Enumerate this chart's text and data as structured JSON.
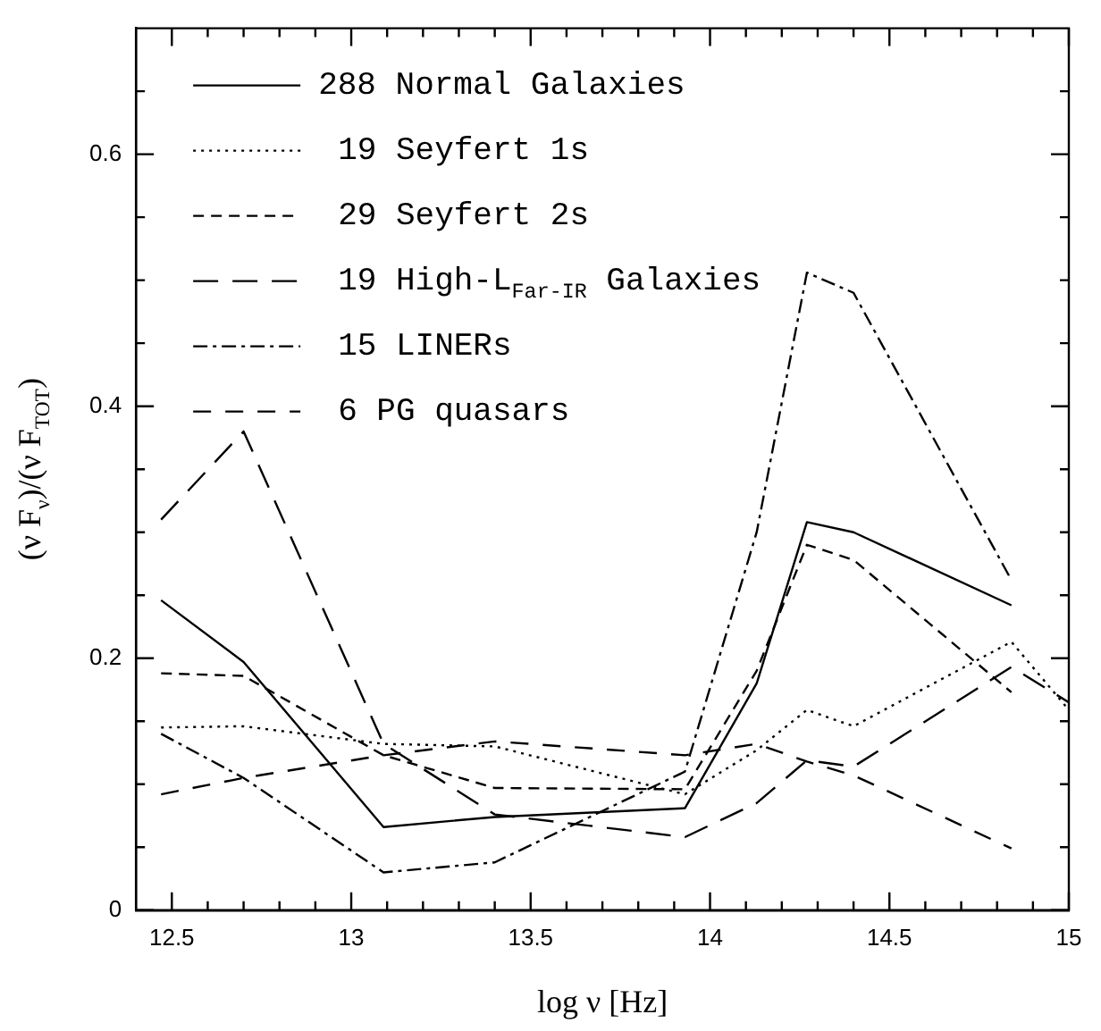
{
  "chart_data": {
    "type": "line",
    "xlabel": "log ν [Hz]",
    "ylabel": "(ν F$_{ν}$)/(ν F$_{TOT}$)",
    "x": [
      12.47,
      12.7,
      13.09,
      13.4,
      13.93,
      14.13,
      14.27,
      14.4,
      14.84,
      15
    ],
    "series": [
      {
        "name": "288 Normal Galaxies",
        "color": "#000000",
        "line_style": "solid",
        "values": [
          0.246,
          0.197,
          0.066,
          0.074,
          0.081,
          0.18,
          0.308,
          0.3,
          0.242,
          null
        ]
      },
      {
        "name": "19 Seyfert 1s",
        "color": "#000000",
        "line_style": "dotted",
        "values": [
          0.145,
          0.146,
          0.132,
          0.13,
          0.092,
          0.127,
          0.159,
          0.146,
          0.213,
          0.159
        ]
      },
      {
        "name": "29 Seyfert 2s",
        "color": "#000000",
        "line_style": "dashed",
        "values": [
          0.188,
          0.186,
          0.123,
          0.097,
          0.096,
          0.19,
          0.29,
          0.278,
          0.173,
          null
        ]
      },
      {
        "name": "19 High-L$_{Far-IR}$ Galaxies",
        "color": "#000000",
        "line_style": "dashed",
        "values": [
          0.31,
          0.38,
          0.132,
          0.076,
          0.058,
          0.085,
          0.119,
          0.114,
          0.193,
          0.165
        ]
      },
      {
        "name": "15 LINERs",
        "color": "#000000",
        "line_style": "dashed",
        "values": [
          0.14,
          0.105,
          0.03,
          0.038,
          0.11,
          0.3,
          0.506,
          0.49,
          0.262,
          null
        ]
      },
      {
        "name": "6 PG quasars",
        "color": "#000000",
        "line_style": "dashed",
        "values": [
          0.092,
          0.105,
          0.123,
          0.134,
          0.123,
          0.132,
          0.118,
          0.107,
          0.049,
          null
        ]
      }
    ],
    "xlim": [
      12.4,
      15
    ],
    "xticks": [
      12.5,
      {
        "value": 12.6,
        "label": null
      },
      {
        "value": 12.7,
        "label": null
      },
      {
        "value": 12.8,
        "label": null
      },
      {
        "value": 12.9,
        "label": null
      },
      13,
      {
        "value": 13.1,
        "label": null
      },
      {
        "value": 13.2,
        "label": null
      },
      {
        "value": 13.3,
        "label": null
      },
      {
        "value": 13.4,
        "label": null
      },
      13.5,
      {
        "value": 13.6,
        "label": null
      },
      {
        "value": 13.7,
        "label": null
      },
      {
        "value": 13.8,
        "label": null
      },
      {
        "value": 13.9,
        "label": null
      },
      14,
      {
        "value": 14.1,
        "label": null
      },
      {
        "value": 14.2,
        "label": null
      },
      {
        "value": 14.3,
        "label": null
      },
      {
        "value": 14.4,
        "label": null
      },
      14.5,
      {
        "value": 14.6,
        "label": null
      },
      {
        "value": 14.7,
        "label": null
      },
      {
        "value": 14.8,
        "label": null
      },
      {
        "value": 14.9,
        "label": null
      },
      15
    ],
    "ylim": [
      0,
      0.7
    ],
    "yticks": [
      0,
      {
        "value": 0.05,
        "label": null
      },
      {
        "value": 0.1,
        "label": null
      },
      {
        "value": 0.15,
        "label": null
      },
      0.2,
      {
        "value": 0.25,
        "label": null
      },
      {
        "value": 0.3,
        "label": null
      },
      {
        "value": 0.35,
        "label": null
      },
      0.4,
      {
        "value": 0.45,
        "label": null
      },
      {
        "value": 0.5,
        "label": null
      },
      {
        "value": 0.55,
        "label": null
      },
      0.6,
      {
        "value": 0.65,
        "label": null
      }
    ],
    "grid": false,
    "legend": "top left",
    "marker": "none"
  }
}
